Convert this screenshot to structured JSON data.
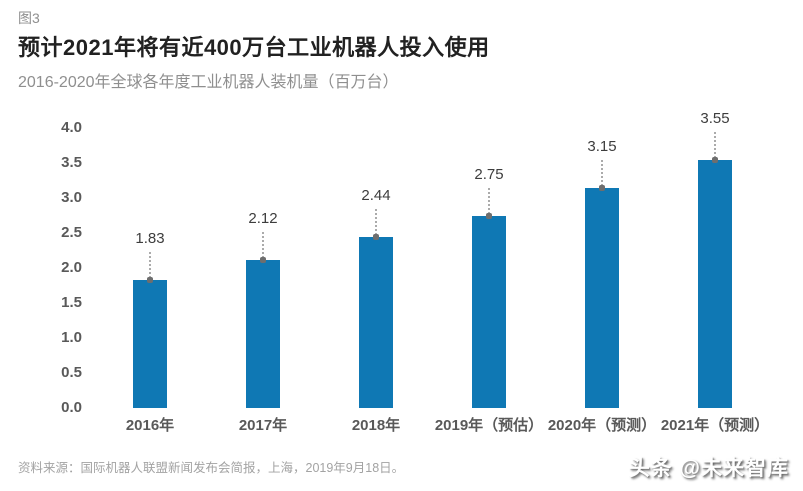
{
  "figure_label": "图3",
  "title": "预计2021年将有近400万台工业机器人投入使用",
  "subtitle": "2016-2020年全球各年度工业机器人装机量（百万台）",
  "source": "资料来源：国际机器人联盟新闻发布会简报，上海，2019年9月18日。",
  "watermark": "头条 @未来智库",
  "colors": {
    "bar": "#0f78b4",
    "title_text": "#212121",
    "subtitle_text": "#8f8f8f",
    "axis_text": "#595959",
    "value_text": "#3d3d3d",
    "source_text": "#a3a3a3",
    "leader_line": "#ababab",
    "leader_dot": "#6e6e6e",
    "background": "#ffffff"
  },
  "chart_data": {
    "type": "bar",
    "title": "预计2021年将有近400万台工业机器人投入使用",
    "subtitle": "2016-2020年全球各年度工业机器人装机量（百万台）",
    "unit": "百万台",
    "categories": [
      "2016年",
      "2017年",
      "2018年",
      "2019年（预估）",
      "2020年（预测）",
      "2021年（预测）"
    ],
    "values": [
      1.83,
      2.12,
      2.44,
      2.75,
      3.15,
      3.55
    ],
    "value_labels": [
      "1.83",
      "2.12",
      "2.44",
      "2.75",
      "3.15",
      "3.55"
    ],
    "xlabel": "",
    "ylabel": "",
    "ylim": [
      0,
      4.0
    ],
    "ytick_step": 0.5,
    "yticks": [
      "4.0",
      "3.5",
      "3.0",
      "2.5",
      "2.0",
      "1.5",
      "1.0",
      "0.5",
      "0.0"
    ],
    "grid": false,
    "legend": false,
    "bar_color": "#0f78b4",
    "data_label_style": "dotted-leader-with-dot"
  }
}
